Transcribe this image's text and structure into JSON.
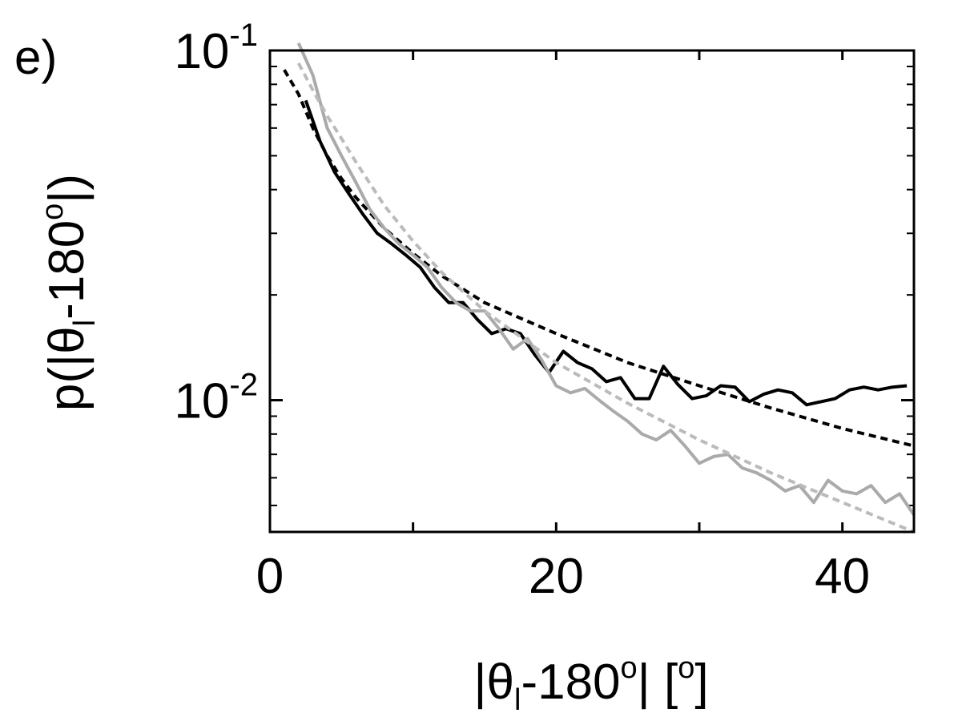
{
  "panel_label": "e)",
  "chart_data": {
    "type": "line",
    "title": "",
    "xlabel": "|θl-180o| [o]",
    "ylabel": "p(|θl-180o|)",
    "xlim": [
      0,
      45
    ],
    "ylim": [
      0.0042,
      0.1
    ],
    "y_scale": "log",
    "grid": false,
    "x_ticks": [
      {
        "value": 0,
        "label": "0"
      },
      {
        "value": 20,
        "label": "20"
      },
      {
        "value": 40,
        "label": "40"
      }
    ],
    "y_ticks": [
      {
        "value": 0.1,
        "base": "10",
        "exp": "-1"
      },
      {
        "value": 0.01,
        "base": "10",
        "exp": "-2"
      }
    ],
    "y_minor_ticks": [
      0.005,
      0.006,
      0.007,
      0.008,
      0.009,
      0.02,
      0.03,
      0.04,
      0.05,
      0.06,
      0.07,
      0.08,
      0.09
    ],
    "x_minor_ticks": [
      10,
      30
    ],
    "series": [
      {
        "color": "#000000",
        "style": "solid",
        "x": [
          2.5,
          3.5,
          4.5,
          5.5,
          6.5,
          7.5,
          8.5,
          9.5,
          10.5,
          11.5,
          12.5,
          13.5,
          14.5,
          15.5,
          16.5,
          17.5,
          18.5,
          19.5,
          20.5,
          21.5,
          22.5,
          23.5,
          24.5,
          25.5,
          26.5,
          27.5,
          28.5,
          29.5,
          30.5,
          31.5,
          32.5,
          33.5,
          34.5,
          35.5,
          36.5,
          37.5,
          38.5,
          39.5,
          40.5,
          41.5,
          42.5,
          43.5,
          44.5
        ],
        "y": [
          0.072,
          0.055,
          0.045,
          0.039,
          0.034,
          0.03,
          0.028,
          0.026,
          0.024,
          0.021,
          0.019,
          0.019,
          0.017,
          0.0155,
          0.016,
          0.0155,
          0.0135,
          0.012,
          0.0138,
          0.0128,
          0.0123,
          0.0113,
          0.0116,
          0.0101,
          0.0101,
          0.0125,
          0.0111,
          0.0101,
          0.0103,
          0.011,
          0.0109,
          0.0099,
          0.0104,
          0.0107,
          0.0105,
          0.0097,
          0.0099,
          0.0101,
          0.0107,
          0.0109,
          0.0107,
          0.0109,
          0.011
        ]
      },
      {
        "color": "#000000",
        "style": "dashed",
        "x": [
          1,
          2,
          3,
          4,
          5,
          6,
          8,
          10,
          12,
          15,
          20,
          25,
          30,
          35,
          40,
          45
        ],
        "y": [
          0.088,
          0.075,
          0.06,
          0.05,
          0.043,
          0.038,
          0.031,
          0.0263,
          0.0227,
          0.019,
          0.0155,
          0.0128,
          0.011,
          0.0095,
          0.0083,
          0.0074
        ]
      },
      {
        "color": "#aaaaaa",
        "style": "solid",
        "x": [
          2,
          3,
          4,
          5,
          6,
          7,
          8,
          9,
          10,
          11,
          12,
          13,
          14,
          15,
          16,
          17,
          18,
          19,
          20,
          21,
          22,
          23,
          24,
          25,
          26,
          27,
          28,
          29,
          30,
          31,
          32,
          33,
          34,
          35,
          36,
          37,
          38,
          39,
          40,
          41,
          42,
          43,
          44,
          45
        ],
        "y": [
          0.105,
          0.085,
          0.06,
          0.05,
          0.042,
          0.035,
          0.031,
          0.028,
          0.026,
          0.024,
          0.021,
          0.019,
          0.018,
          0.018,
          0.016,
          0.014,
          0.015,
          0.013,
          0.011,
          0.0105,
          0.0108,
          0.01,
          0.0093,
          0.0087,
          0.008,
          0.0077,
          0.0082,
          0.0074,
          0.0066,
          0.0069,
          0.007,
          0.0064,
          0.0062,
          0.0059,
          0.0055,
          0.0057,
          0.0051,
          0.0059,
          0.0055,
          0.0054,
          0.0057,
          0.0051,
          0.0054,
          0.0047
        ]
      },
      {
        "color": "#bbbbbb",
        "style": "dashed",
        "x": [
          2,
          3,
          4,
          5,
          6,
          8,
          10,
          12,
          15,
          20,
          25,
          30,
          35,
          40,
          45
        ],
        "y": [
          0.092,
          0.077,
          0.065,
          0.056,
          0.048,
          0.036,
          0.0285,
          0.0232,
          0.018,
          0.0128,
          0.0098,
          0.0077,
          0.0062,
          0.0051,
          0.0042
        ]
      }
    ]
  }
}
